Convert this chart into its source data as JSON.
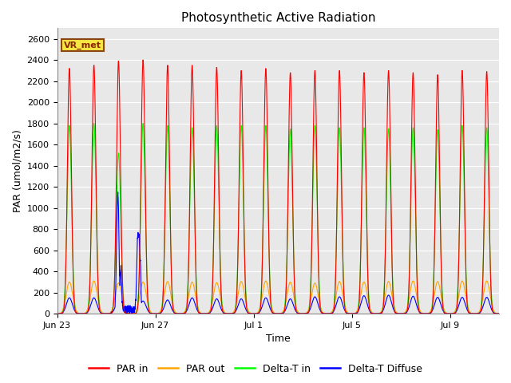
{
  "title": "Photosynthetic Active Radiation",
  "ylabel": "PAR (umol/m2/s)",
  "xlabel": "Time",
  "ylim": [
    0,
    2700
  ],
  "yticks": [
    0,
    200,
    400,
    600,
    800,
    1000,
    1200,
    1400,
    1600,
    1800,
    2000,
    2200,
    2400,
    2600
  ],
  "vr_met_label": "VR_met",
  "legend_entries": [
    "PAR in",
    "PAR out",
    "Delta-T in",
    "Delta-T Diffuse"
  ],
  "n_days": 18,
  "peaks_par_in": [
    2320,
    2350,
    2390,
    2400,
    2350,
    2350,
    2330,
    2300,
    2320,
    2280,
    2300,
    2300,
    2280,
    2300,
    2280,
    2260,
    2300,
    2290
  ],
  "peaks_par_out": [
    300,
    310,
    290,
    300,
    305,
    300,
    295,
    305,
    310,
    300,
    290,
    305,
    300,
    305,
    310,
    305,
    310,
    310
  ],
  "peaks_green": [
    1780,
    1800,
    1520,
    1800,
    1780,
    1760,
    1780,
    1780,
    1780,
    1750,
    1780,
    1760,
    1760,
    1750,
    1760,
    1740,
    1780,
    1760
  ],
  "peaks_blue": [
    150,
    150,
    120,
    120,
    130,
    150,
    140,
    140,
    150,
    140,
    160,
    160,
    170,
    175,
    165,
    155,
    155,
    155
  ],
  "xtick_positions": [
    0,
    4,
    8,
    12,
    16
  ],
  "xtick_labels": [
    "Jun 23",
    "Jun 27",
    "Jul 1",
    "Jul 5",
    "Jul 9"
  ]
}
